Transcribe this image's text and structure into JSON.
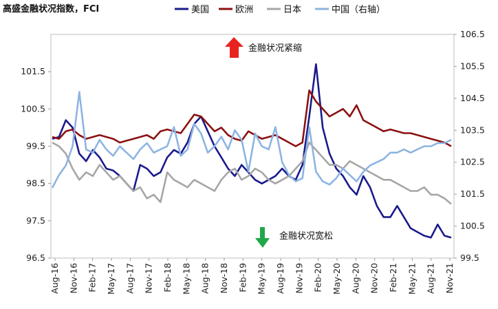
{
  "chart_data": {
    "type": "line",
    "title": "高盛金融状况指数，FCI",
    "x_tick_labels": [
      "Aug-16",
      "Nov-16",
      "Feb-17",
      "May-17",
      "Aug-17",
      "Nov-17",
      "Feb-18",
      "May-18",
      "Aug-18",
      "Nov-18",
      "Feb-19",
      "May-19",
      "Aug-19",
      "Nov-19",
      "Feb-20",
      "May-20",
      "Aug-20",
      "Nov-20",
      "Feb-21",
      "May-21",
      "Aug-21",
      "Nov-21"
    ],
    "y_left": {
      "ticks": [
        "96.5",
        "97.5",
        "98.5",
        "99.5",
        "100.5",
        "101.5"
      ],
      "ylim": [
        96.5,
        102.5
      ]
    },
    "y_right": {
      "ticks": [
        "99.5",
        "100.5",
        "101.5",
        "102.5",
        "103.5",
        "104.5",
        "105.5",
        "106.5"
      ],
      "ylim": [
        99.5,
        106.5
      ]
    },
    "annotations": {
      "tighten": "金融状况紧缩",
      "loosen": "金融状况宽松"
    },
    "colors": {
      "up_arrow": "#e8231f",
      "down_arrow": "#1fa84a"
    },
    "series": [
      {
        "name": "美国",
        "axis": "left",
        "color": "#1a1a8c",
        "points": [
          [
            0,
            99.7
          ],
          [
            1,
            99.75
          ],
          [
            2,
            100.2
          ],
          [
            3,
            100.0
          ],
          [
            4,
            99.3
          ],
          [
            5,
            99.1
          ],
          [
            6,
            99.4
          ],
          [
            7,
            99.2
          ],
          [
            8,
            98.9
          ],
          [
            9,
            98.85
          ],
          [
            10,
            98.7
          ],
          [
            11,
            98.5
          ],
          [
            12,
            98.3
          ],
          [
            13,
            99.0
          ],
          [
            14,
            98.9
          ],
          [
            15,
            98.7
          ],
          [
            16,
            98.8
          ],
          [
            17,
            99.2
          ],
          [
            18,
            99.4
          ],
          [
            19,
            99.3
          ],
          [
            20,
            99.6
          ],
          [
            21,
            100.1
          ],
          [
            22,
            100.3
          ],
          [
            23,
            99.9
          ],
          [
            24,
            99.5
          ],
          [
            25,
            99.2
          ],
          [
            26,
            98.9
          ],
          [
            27,
            98.7
          ],
          [
            28,
            99.0
          ],
          [
            29,
            98.8
          ],
          [
            30,
            98.6
          ],
          [
            31,
            98.5
          ],
          [
            32,
            98.6
          ],
          [
            33,
            98.7
          ],
          [
            34,
            98.9
          ],
          [
            35,
            98.7
          ],
          [
            36,
            98.6
          ],
          [
            37,
            99.0
          ],
          [
            38,
            100.3
          ],
          [
            39,
            101.7
          ],
          [
            40,
            100.0
          ],
          [
            41,
            99.3
          ],
          [
            42,
            98.9
          ],
          [
            43,
            98.7
          ],
          [
            44,
            98.4
          ],
          [
            45,
            98.2
          ],
          [
            46,
            98.7
          ],
          [
            47,
            98.4
          ],
          [
            48,
            97.9
          ],
          [
            49,
            97.6
          ],
          [
            50,
            97.6
          ],
          [
            51,
            97.9
          ],
          [
            52,
            97.6
          ],
          [
            53,
            97.3
          ],
          [
            54,
            97.2
          ],
          [
            55,
            97.1
          ],
          [
            56,
            97.05
          ],
          [
            57,
            97.4
          ],
          [
            58,
            97.1
          ],
          [
            59,
            97.05
          ]
        ]
      },
      {
        "name": "欧洲",
        "axis": "left",
        "color": "#8b1111",
        "points": [
          [
            0,
            99.75
          ],
          [
            1,
            99.7
          ],
          [
            2,
            99.9
          ],
          [
            3,
            99.95
          ],
          [
            4,
            99.8
          ],
          [
            5,
            99.7
          ],
          [
            6,
            99.75
          ],
          [
            7,
            99.8
          ],
          [
            8,
            99.75
          ],
          [
            9,
            99.7
          ],
          [
            10,
            99.6
          ],
          [
            11,
            99.65
          ],
          [
            12,
            99.7
          ],
          [
            13,
            99.75
          ],
          [
            14,
            99.8
          ],
          [
            15,
            99.7
          ],
          [
            16,
            99.9
          ],
          [
            17,
            99.95
          ],
          [
            18,
            99.9
          ],
          [
            19,
            99.85
          ],
          [
            20,
            100.1
          ],
          [
            21,
            100.35
          ],
          [
            22,
            100.3
          ],
          [
            23,
            100.1
          ],
          [
            24,
            99.9
          ],
          [
            25,
            100.0
          ],
          [
            26,
            99.8
          ],
          [
            27,
            99.7
          ],
          [
            28,
            99.65
          ],
          [
            29,
            99.9
          ],
          [
            30,
            99.8
          ],
          [
            31,
            99.7
          ],
          [
            32,
            99.75
          ],
          [
            33,
            99.8
          ],
          [
            34,
            99.7
          ],
          [
            35,
            99.6
          ],
          [
            36,
            99.5
          ],
          [
            37,
            99.6
          ],
          [
            38,
            101.0
          ],
          [
            39,
            100.7
          ],
          [
            40,
            100.5
          ],
          [
            41,
            100.3
          ],
          [
            42,
            100.4
          ],
          [
            43,
            100.5
          ],
          [
            44,
            100.3
          ],
          [
            45,
            100.6
          ],
          [
            46,
            100.2
          ],
          [
            47,
            100.1
          ],
          [
            48,
            100.0
          ],
          [
            49,
            99.9
          ],
          [
            50,
            99.95
          ],
          [
            51,
            99.9
          ],
          [
            52,
            99.85
          ],
          [
            53,
            99.85
          ],
          [
            54,
            99.8
          ],
          [
            55,
            99.75
          ],
          [
            56,
            99.7
          ],
          [
            57,
            99.65
          ],
          [
            58,
            99.6
          ],
          [
            59,
            99.5
          ]
        ]
      },
      {
        "name": "日本",
        "axis": "left",
        "color": "#a6a6a6",
        "points": [
          [
            0,
            99.6
          ],
          [
            1,
            99.5
          ],
          [
            2,
            99.3
          ],
          [
            3,
            98.9
          ],
          [
            4,
            98.6
          ],
          [
            5,
            98.8
          ],
          [
            6,
            98.7
          ],
          [
            7,
            99.0
          ],
          [
            8,
            98.8
          ],
          [
            9,
            98.6
          ],
          [
            10,
            98.7
          ],
          [
            11,
            98.5
          ],
          [
            12,
            98.3
          ],
          [
            13,
            98.4
          ],
          [
            14,
            98.1
          ],
          [
            15,
            98.2
          ],
          [
            16,
            98.0
          ],
          [
            17,
            98.8
          ],
          [
            18,
            98.6
          ],
          [
            19,
            98.5
          ],
          [
            20,
            98.4
          ],
          [
            21,
            98.6
          ],
          [
            22,
            98.5
          ],
          [
            23,
            98.4
          ],
          [
            24,
            98.3
          ],
          [
            25,
            98.6
          ],
          [
            26,
            98.8
          ],
          [
            27,
            98.9
          ],
          [
            28,
            98.6
          ],
          [
            29,
            98.7
          ],
          [
            30,
            98.9
          ],
          [
            31,
            98.8
          ],
          [
            32,
            98.6
          ],
          [
            33,
            98.5
          ],
          [
            34,
            98.6
          ],
          [
            35,
            98.7
          ],
          [
            36,
            98.9
          ],
          [
            37,
            99.1
          ],
          [
            38,
            99.6
          ],
          [
            39,
            99.4
          ],
          [
            40,
            99.2
          ],
          [
            41,
            99.0
          ],
          [
            42,
            99.0
          ],
          [
            43,
            98.9
          ],
          [
            44,
            99.1
          ],
          [
            45,
            99.0
          ],
          [
            46,
            98.9
          ],
          [
            47,
            98.8
          ],
          [
            48,
            98.7
          ],
          [
            49,
            98.6
          ],
          [
            50,
            98.6
          ],
          [
            51,
            98.5
          ],
          [
            52,
            98.4
          ],
          [
            53,
            98.3
          ],
          [
            54,
            98.3
          ],
          [
            55,
            98.4
          ],
          [
            56,
            98.2
          ],
          [
            57,
            98.2
          ],
          [
            58,
            98.1
          ],
          [
            59,
            97.95
          ]
        ]
      },
      {
        "name": "中国（右轴）",
        "axis": "right",
        "color": "#8db4e2",
        "points": [
          [
            0,
            101.7
          ],
          [
            1,
            102.1
          ],
          [
            2,
            102.4
          ],
          [
            3,
            103.0
          ],
          [
            4,
            104.7
          ],
          [
            5,
            102.9
          ],
          [
            6,
            102.8
          ],
          [
            7,
            103.2
          ],
          [
            8,
            102.9
          ],
          [
            9,
            102.7
          ],
          [
            10,
            103.0
          ],
          [
            11,
            102.8
          ],
          [
            12,
            102.6
          ],
          [
            13,
            102.9
          ],
          [
            14,
            103.1
          ],
          [
            15,
            102.8
          ],
          [
            16,
            102.9
          ],
          [
            17,
            103.0
          ],
          [
            18,
            103.6
          ],
          [
            19,
            102.7
          ],
          [
            20,
            102.9
          ],
          [
            21,
            103.7
          ],
          [
            22,
            103.4
          ],
          [
            23,
            102.8
          ],
          [
            24,
            103.0
          ],
          [
            25,
            103.3
          ],
          [
            26,
            102.9
          ],
          [
            27,
            103.5
          ],
          [
            28,
            103.2
          ],
          [
            29,
            102.2
          ],
          [
            30,
            103.4
          ],
          [
            31,
            103.0
          ],
          [
            32,
            102.9
          ],
          [
            33,
            103.6
          ],
          [
            34,
            102.5
          ],
          [
            35,
            102.1
          ],
          [
            36,
            101.9
          ],
          [
            37,
            102.0
          ],
          [
            38,
            103.6
          ],
          [
            39,
            102.2
          ],
          [
            40,
            101.9
          ],
          [
            41,
            101.8
          ],
          [
            42,
            102.0
          ],
          [
            43,
            102.3
          ],
          [
            44,
            102.1
          ],
          [
            45,
            101.9
          ],
          [
            46,
            102.2
          ],
          [
            47,
            102.4
          ],
          [
            48,
            102.5
          ],
          [
            49,
            102.6
          ],
          [
            50,
            102.8
          ],
          [
            51,
            102.8
          ],
          [
            52,
            102.9
          ],
          [
            53,
            102.8
          ],
          [
            54,
            102.9
          ],
          [
            55,
            103.0
          ],
          [
            56,
            103.0
          ],
          [
            57,
            103.1
          ],
          [
            58,
            103.1
          ],
          [
            59,
            103.2
          ]
        ]
      }
    ]
  }
}
